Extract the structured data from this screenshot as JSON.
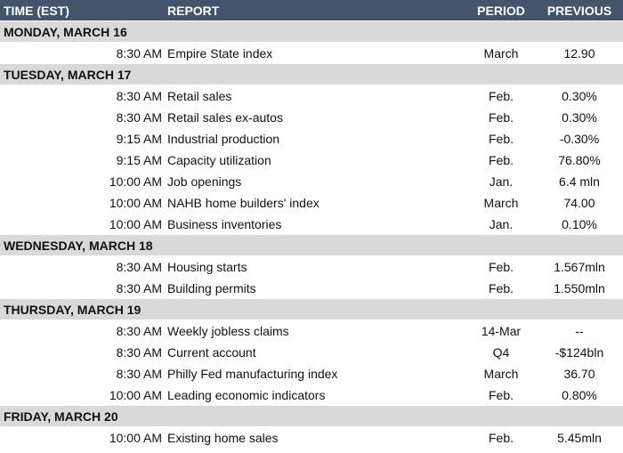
{
  "header": {
    "time": "TIME (EST)",
    "report": "REPORT",
    "period": "PERIOD",
    "previous": "PREVIOUS"
  },
  "days": [
    {
      "label": "MONDAY, MARCH 16",
      "rows": [
        {
          "time": "8:30 AM",
          "report": "Empire State index",
          "period": "March",
          "previous": "12.90"
        }
      ]
    },
    {
      "label": "TUESDAY, MARCH 17",
      "rows": [
        {
          "time": "8:30 AM",
          "report": "Retail sales",
          "period": "Feb.",
          "previous": "0.30%"
        },
        {
          "time": "8:30 AM",
          "report": "Retail sales ex-autos",
          "period": "Feb.",
          "previous": "0.30%"
        },
        {
          "time": "9:15 AM",
          "report": "Industrial production",
          "period": "Feb.",
          "previous": "-0.30%"
        },
        {
          "time": "9:15 AM",
          "report": "Capacity utilization",
          "period": "Feb.",
          "previous": "76.80%"
        },
        {
          "time": "10:00 AM",
          "report": "Job openings",
          "period": "Jan.",
          "previous": "6.4 mln"
        },
        {
          "time": "10:00 AM",
          "report": "NAHB home builders' index",
          "period": "March",
          "previous": "74.00"
        },
        {
          "time": "10:00 AM",
          "report": "Business inventories",
          "period": "Jan.",
          "previous": "0.10%"
        }
      ]
    },
    {
      "label": "WEDNESDAY, MARCH 18",
      "rows": [
        {
          "time": "8:30 AM",
          "report": "Housing starts",
          "period": "Feb.",
          "previous": "1.567mln"
        },
        {
          "time": "8:30 AM",
          "report": "Building permits",
          "period": "Feb.",
          "previous": "1.550mln"
        }
      ]
    },
    {
      "label": "THURSDAY, MARCH 19",
      "rows": [
        {
          "time": "8:30 AM",
          "report": "Weekly jobless claims",
          "period": "14-Mar",
          "previous": "--"
        },
        {
          "time": "8:30 AM",
          "report": "Current account",
          "period": "Q4",
          "previous": "-$124bln"
        },
        {
          "time": "8:30 AM",
          "report": "Philly Fed manufacturing index",
          "period": "March",
          "previous": "36.70"
        },
        {
          "time": "10:00 AM",
          "report": "Leading economic indicators",
          "period": "Feb.",
          "previous": "0.80%"
        }
      ]
    },
    {
      "label": "FRIDAY, MARCH 20",
      "rows": [
        {
          "time": "10:00 AM",
          "report": "Existing home sales",
          "period": "Feb.",
          "previous": "5.45mln"
        }
      ]
    }
  ]
}
